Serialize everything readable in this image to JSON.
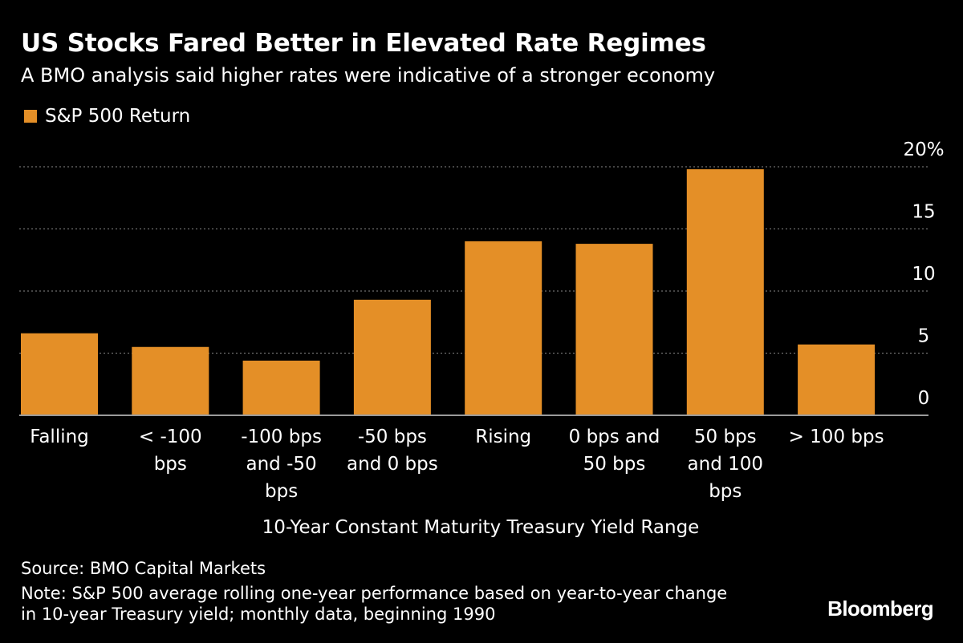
{
  "title": "US Stocks Fared Better in Elevated Rate Regimes",
  "subtitle": "A BMO analysis said higher rates were indicative of a stronger economy",
  "legend": {
    "label": "S&P 500 Return",
    "color": "#e48f27"
  },
  "xlabel": "10-Year Constant Maturity Treasury Yield Range",
  "source": "Source: BMO Capital Markets",
  "note": "Note: S&P 500 average rolling one-year performance based on year-to-year change in 10-year Treasury yield; monthly data, beginning 1990",
  "brand": "Bloomberg",
  "colors": {
    "bar": "#e48f27",
    "background": "#000000",
    "grid": "#6e6e6e",
    "axis": "#9a9a9a",
    "text": "#ffffff"
  },
  "chart_data": {
    "type": "bar",
    "categories": [
      [
        "Falling"
      ],
      [
        "< -100",
        "bps"
      ],
      [
        "-100 bps",
        "and -50",
        "bps"
      ],
      [
        "-50 bps",
        "and 0 bps"
      ],
      [
        "Rising"
      ],
      [
        "0 bps and",
        "50 bps"
      ],
      [
        "50 bps",
        "and 100",
        "bps"
      ],
      [
        "> 100 bps"
      ]
    ],
    "series": [
      {
        "name": "S&P 500 Return",
        "values": [
          6.6,
          5.5,
          4.4,
          9.3,
          14.0,
          13.8,
          19.8,
          5.7
        ]
      }
    ],
    "yticks": [
      "20%",
      "15",
      "10",
      "5",
      "0"
    ],
    "ytick_values": [
      20,
      15,
      10,
      5,
      0
    ],
    "ylim": [
      0,
      20
    ],
    "ylabel": "",
    "xlabel": "10-Year Constant Maturity Treasury Yield Range",
    "grid": true,
    "legend_position": "top-left",
    "yaxis_position": "right"
  }
}
